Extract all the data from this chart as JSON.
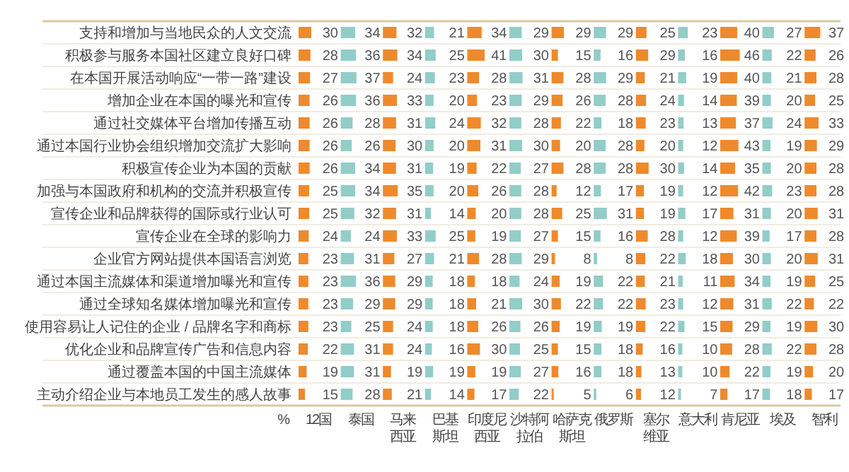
{
  "chart_data": [
    {
      "type": "bar",
      "orientation": "horizontal",
      "data_labels": true,
      "tick_labels": "y",
      "annotations": [
        "%"
      ],
      "title": "12国",
      "categories": [
        "支持和增加与当地民众的人文交流",
        "积极参与服务本国社区建立良好口碑",
        "在本国开展活动响应“一带一路”建设",
        "增加企业在本国的曝光和宣传",
        "通过社交媒体平台增加传播互动",
        "通过本国行业协会组织增加交流扩大影响",
        "积极宣传企业为本国的贡献",
        "加强与本国政府和机构的交流并积极宣传",
        "宣传企业和品牌获得的国际或行业认可",
        "宣传企业在全球的影响力",
        "企业官方网站提供本国语言浏览",
        "通过本国主流媒体和渠道增加曝光和宣传",
        "通过全球知名媒体增加曝光和宣传",
        "使用容易让人记住的企业 / 品牌名字和商标",
        "优化企业和品牌宣传广告和信息内容",
        "通过覆盖本国的中国主流媒体",
        "主动介绍企业与本地员工发生的感人故事"
      ],
      "color": "#ee8a2c",
      "values": [
        30,
        28,
        27,
        26,
        26,
        26,
        26,
        25,
        25,
        24,
        23,
        23,
        23,
        23,
        22,
        19,
        15
      ]
    },
    {
      "type": "bar",
      "orientation": "horizontal",
      "data_labels": true,
      "tick_labels": false,
      "title": "泰国",
      "categories": [
        null,
        null,
        null,
        null,
        null,
        null,
        null,
        null,
        null,
        null,
        null,
        null,
        null,
        null,
        null,
        null,
        null
      ],
      "color": "#92cdc8",
      "values": [
        34,
        36,
        37,
        36,
        28,
        26,
        34,
        34,
        32,
        24,
        31,
        36,
        29,
        25,
        31,
        31,
        28
      ]
    },
    {
      "type": "bar",
      "orientation": "horizontal",
      "data_labels": true,
      "tick_labels": false,
      "title": "马来西亚",
      "categories": [
        null,
        null,
        null,
        null,
        null,
        null,
        null,
        null,
        null,
        null,
        null,
        null,
        null,
        null,
        null,
        null,
        null
      ],
      "color": "#ee8a2c",
      "values": [
        32,
        34,
        24,
        33,
        31,
        30,
        31,
        35,
        31,
        33,
        27,
        29,
        29,
        24,
        24,
        19,
        21
      ]
    },
    {
      "type": "bar",
      "orientation": "horizontal",
      "data_labels": true,
      "tick_labels": false,
      "title": "巴基斯坦",
      "categories": [
        null,
        null,
        null,
        null,
        null,
        null,
        null,
        null,
        null,
        null,
        null,
        null,
        null,
        null,
        null,
        null,
        null
      ],
      "color": "#92cdc8",
      "values": [
        21,
        25,
        23,
        20,
        24,
        20,
        19,
        20,
        14,
        25,
        21,
        18,
        18,
        18,
        16,
        19,
        14
      ]
    },
    {
      "type": "bar",
      "orientation": "horizontal",
      "data_labels": true,
      "tick_labels": false,
      "title": "印度尼西亚",
      "categories": [
        null,
        null,
        null,
        null,
        null,
        null,
        null,
        null,
        null,
        null,
        null,
        null,
        null,
        null,
        null,
        null,
        null
      ],
      "color": "#ee8a2c",
      "values": [
        34,
        41,
        28,
        23,
        32,
        31,
        22,
        26,
        20,
        19,
        28,
        18,
        21,
        26,
        30,
        19,
        17
      ]
    },
    {
      "type": "bar",
      "orientation": "horizontal",
      "data_labels": true,
      "tick_labels": false,
      "title": "沙特阿拉伯",
      "categories": [
        null,
        null,
        null,
        null,
        null,
        null,
        null,
        null,
        null,
        null,
        null,
        null,
        null,
        null,
        null,
        null,
        null
      ],
      "color": "#92cdc8",
      "values": [
        29,
        30,
        31,
        29,
        28,
        30,
        27,
        28,
        28,
        27,
        29,
        24,
        30,
        26,
        25,
        27,
        22
      ]
    },
    {
      "type": "bar",
      "orientation": "horizontal",
      "data_labels": true,
      "tick_labels": false,
      "title": "哈萨克斯坦",
      "categories": [
        null,
        null,
        null,
        null,
        null,
        null,
        null,
        null,
        null,
        null,
        null,
        null,
        null,
        null,
        null,
        null,
        null
      ],
      "color": "#ee8a2c",
      "values": [
        29,
        15,
        28,
        26,
        22,
        20,
        28,
        12,
        25,
        15,
        8,
        19,
        22,
        19,
        15,
        16,
        5
      ]
    },
    {
      "type": "bar",
      "orientation": "horizontal",
      "data_labels": true,
      "tick_labels": false,
      "title": "俄罗斯",
      "categories": [
        null,
        null,
        null,
        null,
        null,
        null,
        null,
        null,
        null,
        null,
        null,
        null,
        null,
        null,
        null,
        null,
        null
      ],
      "color": "#92cdc8",
      "values": [
        29,
        16,
        29,
        28,
        18,
        28,
        28,
        17,
        31,
        16,
        8,
        22,
        22,
        19,
        18,
        18,
        6
      ]
    },
    {
      "type": "bar",
      "orientation": "horizontal",
      "data_labels": true,
      "tick_labels": false,
      "title": "塞尔维亚",
      "categories": [
        null,
        null,
        null,
        null,
        null,
        null,
        null,
        null,
        null,
        null,
        null,
        null,
        null,
        null,
        null,
        null,
        null
      ],
      "color": "#ee8a2c",
      "values": [
        25,
        29,
        21,
        24,
        23,
        20,
        30,
        19,
        19,
        28,
        22,
        21,
        23,
        22,
        16,
        13,
        12
      ]
    },
    {
      "type": "bar",
      "orientation": "horizontal",
      "data_labels": true,
      "tick_labels": false,
      "title": "意大利",
      "categories": [
        null,
        null,
        null,
        null,
        null,
        null,
        null,
        null,
        null,
        null,
        null,
        null,
        null,
        null,
        null,
        null,
        null
      ],
      "color": "#92cdc8",
      "values": [
        23,
        16,
        19,
        14,
        13,
        12,
        14,
        12,
        17,
        12,
        18,
        11,
        12,
        15,
        10,
        10,
        7
      ]
    },
    {
      "type": "bar",
      "orientation": "horizontal",
      "data_labels": true,
      "tick_labels": false,
      "title": "肯尼亚",
      "categories": [
        null,
        null,
        null,
        null,
        null,
        null,
        null,
        null,
        null,
        null,
        null,
        null,
        null,
        null,
        null,
        null,
        null
      ],
      "color": "#ee8a2c",
      "values": [
        40,
        46,
        40,
        39,
        37,
        43,
        35,
        42,
        31,
        39,
        30,
        34,
        31,
        29,
        28,
        22,
        17
      ]
    },
    {
      "type": "bar",
      "orientation": "horizontal",
      "data_labels": true,
      "tick_labels": false,
      "title": "埃及",
      "categories": [
        null,
        null,
        null,
        null,
        null,
        null,
        null,
        null,
        null,
        null,
        null,
        null,
        null,
        null,
        null,
        null,
        null
      ],
      "color": "#92cdc8",
      "values": [
        27,
        22,
        21,
        20,
        24,
        19,
        20,
        23,
        20,
        17,
        20,
        19,
        22,
        19,
        22,
        19,
        18
      ]
    },
    {
      "type": "bar",
      "orientation": "horizontal",
      "data_labels": true,
      "tick_labels": false,
      "title": "智利",
      "categories": [
        null,
        null,
        null,
        null,
        null,
        null,
        null,
        null,
        null,
        null,
        null,
        null,
        null,
        null,
        null,
        null,
        null
      ],
      "color": "#ee8a2c",
      "values": [
        37,
        26,
        28,
        25,
        33,
        29,
        28,
        28,
        31,
        28,
        31,
        25,
        22,
        30,
        28,
        20,
        17
      ]
    }
  ]
}
